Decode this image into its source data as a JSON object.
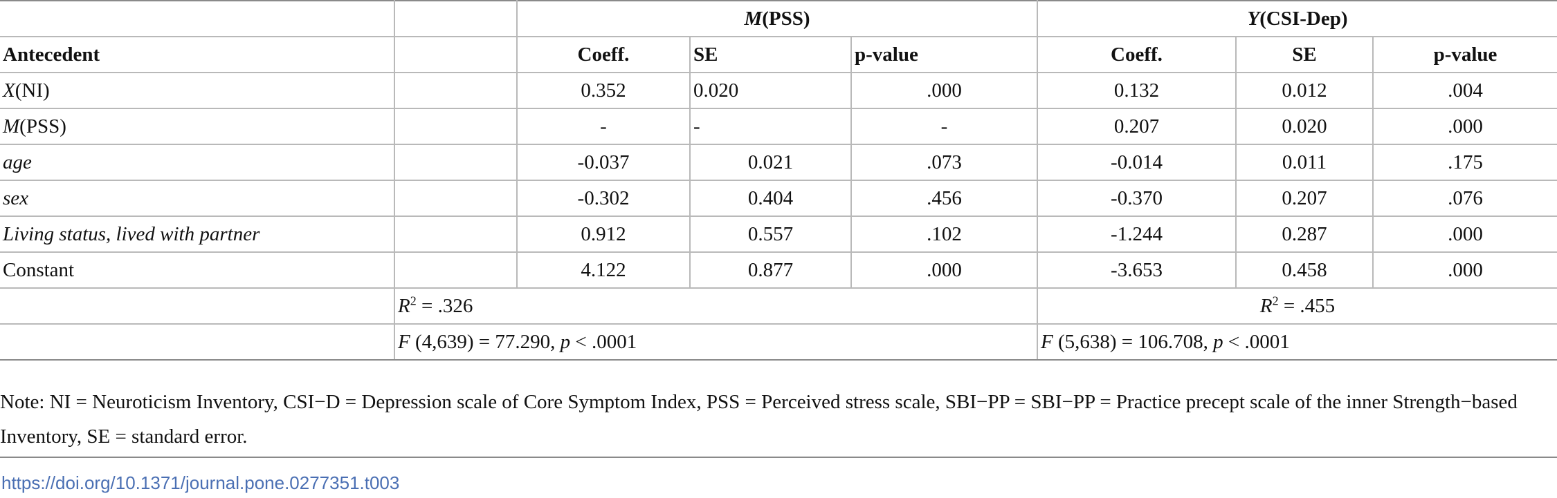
{
  "table": {
    "groups": {
      "m_var": "M",
      "m_paren": "(PSS)",
      "y_var": "Y",
      "y_paren": "(CSI-Dep)"
    },
    "header": {
      "antecedent": "Antecedent",
      "coeff": "Coeff.",
      "se": "SE",
      "pvalue": "p-value"
    },
    "rows": [
      {
        "label_var": "X",
        "label_rest": "(NI)",
        "m_coeff": "0.352",
        "m_se": "0.020",
        "m_p": ".000",
        "y_coeff": "0.132",
        "y_se": "0.012",
        "y_p": ".004"
      },
      {
        "label_var": "M",
        "label_rest": "(PSS)",
        "m_coeff": "-",
        "m_se": "-",
        "m_p": "-",
        "y_coeff": "0.207",
        "y_se": "0.020",
        "y_p": ".000"
      },
      {
        "label_italic": "age",
        "m_coeff": "-0.037",
        "m_se": "0.021",
        "m_p": ".073",
        "y_coeff": "-0.014",
        "y_se": "0.011",
        "y_p": ".175"
      },
      {
        "label_italic": "sex",
        "m_coeff": "-0.302",
        "m_se": "0.404",
        "m_p": ".456",
        "y_coeff": "-0.370",
        "y_se": "0.207",
        "y_p": ".076"
      },
      {
        "label_italic": "Living status, lived with partner",
        "m_coeff": "0.912",
        "m_se": "0.557",
        "m_p": ".102",
        "y_coeff": "-1.244",
        "y_se": "0.287",
        "y_p": ".000"
      },
      {
        "label": "Constant",
        "m_coeff": "4.122",
        "m_se": "0.877",
        "m_p": ".000",
        "y_coeff": "-3.653",
        "y_se": "0.458",
        "y_p": ".000"
      }
    ],
    "r2": {
      "symbol": "R",
      "exponent": "2",
      "m_value": " = .326",
      "y_value": " = .455"
    },
    "f": {
      "m_symbol": "F",
      "m_mid": " (4,639) = 77.290, ",
      "m_p": "p",
      "m_tail": " < .0001",
      "y_symbol": "F",
      "y_mid": " (5,638) = 106.708, ",
      "y_p": "p",
      "y_tail": " < .0001"
    }
  },
  "note": "Note: NI = Neuroticism Inventory, CSI−D = Depression scale of Core Symptom Index, PSS = Perceived stress scale, SBI−PP = SBI−PP = Practice precept scale of the inner Strength−based Inventory, SE = standard error.",
  "doi": "https://doi.org/10.1371/journal.pone.0277351.t003"
}
